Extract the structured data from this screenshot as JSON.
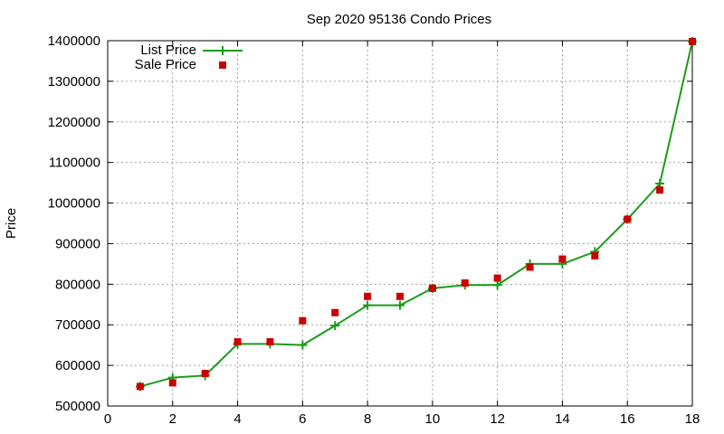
{
  "chart_data": {
    "type": "line",
    "title": "Sep 2020 95136 Condo Prices",
    "xlabel": "",
    "ylabel": "Price",
    "xlim": [
      0,
      18
    ],
    "ylim": [
      500000,
      1400000
    ],
    "x_ticks": [
      0,
      2,
      4,
      6,
      8,
      10,
      12,
      14,
      16,
      18
    ],
    "y_ticks": [
      500000,
      600000,
      700000,
      800000,
      900000,
      1000000,
      1100000,
      1200000,
      1300000,
      1400000
    ],
    "grid": true,
    "legend_position": "top-left",
    "series": [
      {
        "name": "List Price",
        "style": "line-with-plus",
        "color": "#1a9c1a",
        "x": [
          1,
          2,
          3,
          4,
          5,
          6,
          7,
          8,
          9,
          10,
          11,
          12,
          13,
          14,
          15,
          16,
          17,
          18
        ],
        "values": [
          548000,
          570000,
          575000,
          653000,
          653000,
          650000,
          698000,
          748000,
          748000,
          790000,
          798000,
          798000,
          850000,
          850000,
          880000,
          960000,
          1048000,
          1398000
        ]
      },
      {
        "name": "Sale Price",
        "style": "square-markers",
        "color": "#cc0000",
        "x": [
          1,
          2,
          3,
          4,
          5,
          6,
          7,
          8,
          9,
          10,
          11,
          12,
          13,
          14,
          15,
          16,
          17,
          18
        ],
        "values": [
          548000,
          557000,
          580000,
          658000,
          658000,
          710000,
          730000,
          770000,
          770000,
          790000,
          803000,
          815000,
          842000,
          862000,
          870000,
          960000,
          1032000,
          1398000
        ]
      }
    ]
  }
}
